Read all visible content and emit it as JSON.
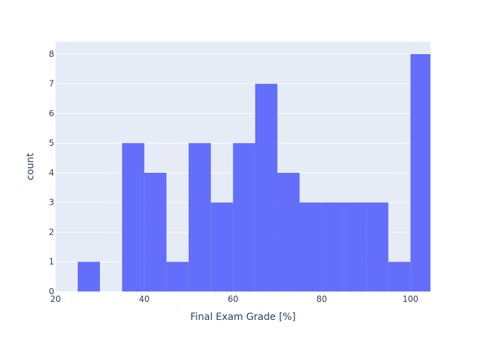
{
  "chart_data": {
    "type": "bar",
    "subtype": "histogram",
    "title": "",
    "xlabel": "Final Exam Grade [%]",
    "ylabel": "count",
    "xlim": [
      20,
      104.5
    ],
    "ylim": [
      0,
      8.42
    ],
    "x_ticks": [
      "20",
      "40",
      "60",
      "80",
      "100"
    ],
    "y_ticks": [
      "0",
      "1",
      "2",
      "3",
      "4",
      "5",
      "6",
      "7",
      "8"
    ],
    "grid": true,
    "legend": "none",
    "colors": {
      "bar": "#636efa",
      "plot_bg": "#e5ecf6",
      "grid": "#ffffff",
      "text": "#2a3f5f"
    },
    "bin_size": 5,
    "bins": [
      {
        "start": 25,
        "end": 30,
        "count": 1
      },
      {
        "start": 30,
        "end": 35,
        "count": 0
      },
      {
        "start": 35,
        "end": 40,
        "count": 5
      },
      {
        "start": 40,
        "end": 45,
        "count": 4
      },
      {
        "start": 45,
        "end": 50,
        "count": 1
      },
      {
        "start": 50,
        "end": 55,
        "count": 5
      },
      {
        "start": 55,
        "end": 60,
        "count": 3
      },
      {
        "start": 60,
        "end": 65,
        "count": 5
      },
      {
        "start": 65,
        "end": 70,
        "count": 7
      },
      {
        "start": 70,
        "end": 75,
        "count": 4
      },
      {
        "start": 75,
        "end": 80,
        "count": 3
      },
      {
        "start": 80,
        "end": 85,
        "count": 3
      },
      {
        "start": 85,
        "end": 90,
        "count": 3
      },
      {
        "start": 90,
        "end": 95,
        "count": 3
      },
      {
        "start": 95,
        "end": 100,
        "count": 1
      },
      {
        "start": 100,
        "end": 105,
        "count": 8
      }
    ]
  }
}
